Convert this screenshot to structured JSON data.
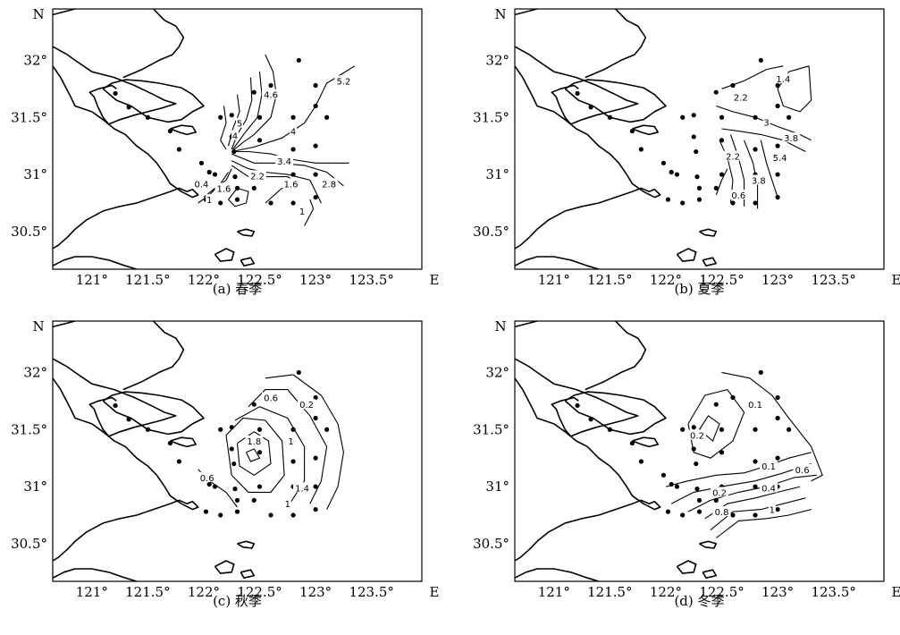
{
  "x_ticks": [
    "121°",
    "121.5°",
    "122°",
    "122.5°",
    "123°",
    "123.5°"
  ],
  "y_ticks": [
    "32°",
    "31.5°",
    "31°",
    "30.5°"
  ],
  "north_label": "N",
  "east_label": "E",
  "stations": [
    [
      121.21,
      31.71
    ],
    [
      121.33,
      31.59
    ],
    [
      121.5,
      31.5
    ],
    [
      121.7,
      31.38
    ],
    [
      121.78,
      31.22
    ],
    [
      121.98,
      31.1
    ],
    [
      122.05,
      31.02
    ],
    [
      122.1,
      31.0
    ],
    [
      122.02,
      30.78
    ],
    [
      122.15,
      30.75
    ],
    [
      122.15,
      31.5
    ],
    [
      122.25,
      31.52
    ],
    [
      122.25,
      31.33
    ],
    [
      122.27,
      31.2
    ],
    [
      122.28,
      30.98
    ],
    [
      122.3,
      30.88
    ],
    [
      122.3,
      30.78
    ],
    [
      122.45,
      30.88
    ],
    [
      122.45,
      31.72
    ],
    [
      122.5,
      31.5
    ],
    [
      122.5,
      31.3
    ],
    [
      122.5,
      31.0
    ],
    [
      122.6,
      31.78
    ],
    [
      122.6,
      30.75
    ],
    [
      122.8,
      31.5
    ],
    [
      122.8,
      31.22
    ],
    [
      122.8,
      31.0
    ],
    [
      122.8,
      30.75
    ],
    [
      122.85,
      32.0
    ],
    [
      123.0,
      31.78
    ],
    [
      123.0,
      31.6
    ],
    [
      123.0,
      31.25
    ],
    [
      123.0,
      31.0
    ],
    [
      123.0,
      30.8
    ],
    [
      123.1,
      31.5
    ]
  ],
  "maps": [
    {
      "caption": "(a) 春季",
      "contour_labels": [
        {
          "text": "5.2",
          "lon": 123.25,
          "lat": 31.82
        },
        {
          "text": "4.6",
          "lon": 122.6,
          "lat": 31.7
        },
        {
          "text": "4",
          "lon": 122.8,
          "lat": 31.38
        },
        {
          "text": "4",
          "lon": 122.28,
          "lat": 31.34
        },
        {
          "text": "5",
          "lon": 122.32,
          "lat": 31.45
        },
        {
          "text": "3.4",
          "lon": 122.72,
          "lat": 31.12
        },
        {
          "text": "2.2",
          "lon": 122.48,
          "lat": 30.99
        },
        {
          "text": "2.8",
          "lon": 123.12,
          "lat": 30.92
        },
        {
          "text": "1.6",
          "lon": 122.78,
          "lat": 30.92
        },
        {
          "text": "1.6",
          "lon": 122.18,
          "lat": 30.88
        },
        {
          "text": "0.4",
          "lon": 121.98,
          "lat": 30.92
        },
        {
          "text": "1",
          "lon": 122.05,
          "lat": 30.78
        },
        {
          "text": "1",
          "lon": 122.88,
          "lat": 30.68
        }
      ]
    },
    {
      "caption": "(b) 夏季",
      "contour_labels": [
        {
          "text": "1.4",
          "lon": 123.05,
          "lat": 31.84
        },
        {
          "text": "2.2",
          "lon": 122.67,
          "lat": 31.68
        },
        {
          "text": "3",
          "lon": 122.9,
          "lat": 31.46
        },
        {
          "text": "3.8",
          "lon": 123.12,
          "lat": 31.32
        },
        {
          "text": "5.4",
          "lon": 123.02,
          "lat": 31.15
        },
        {
          "text": "3.8",
          "lon": 122.83,
          "lat": 30.95
        },
        {
          "text": "2.2",
          "lon": 122.6,
          "lat": 31.16
        },
        {
          "text": "0.6",
          "lon": 122.65,
          "lat": 30.82
        }
      ]
    },
    {
      "caption": "(c) 秋季",
      "contour_labels": [
        {
          "text": "0.6",
          "lon": 122.6,
          "lat": 31.78
        },
        {
          "text": "0.2",
          "lon": 122.92,
          "lat": 31.72
        },
        {
          "text": "1.8",
          "lon": 122.45,
          "lat": 31.4
        },
        {
          "text": "1",
          "lon": 122.78,
          "lat": 31.4
        },
        {
          "text": "1.4",
          "lon": 122.88,
          "lat": 30.99
        },
        {
          "text": "1",
          "lon": 122.75,
          "lat": 30.85
        },
        {
          "text": "0.6",
          "lon": 122.03,
          "lat": 31.08
        }
      ]
    },
    {
      "caption": "(d) 冬季",
      "contour_labels": [
        {
          "text": "0.1",
          "lon": 122.8,
          "lat": 31.72
        },
        {
          "text": "0.2",
          "lon": 122.28,
          "lat": 31.45
        },
        {
          "text": "0.1",
          "lon": 122.92,
          "lat": 31.18
        },
        {
          "text": "0.6",
          "lon": 123.22,
          "lat": 31.15
        },
        {
          "text": "0.4",
          "lon": 122.92,
          "lat": 30.99
        },
        {
          "text": "0.2",
          "lon": 122.48,
          "lat": 30.95
        },
        {
          "text": "0.8",
          "lon": 122.5,
          "lat": 30.78
        },
        {
          "text": "1",
          "lon": 122.95,
          "lat": 30.8
        }
      ]
    }
  ]
}
